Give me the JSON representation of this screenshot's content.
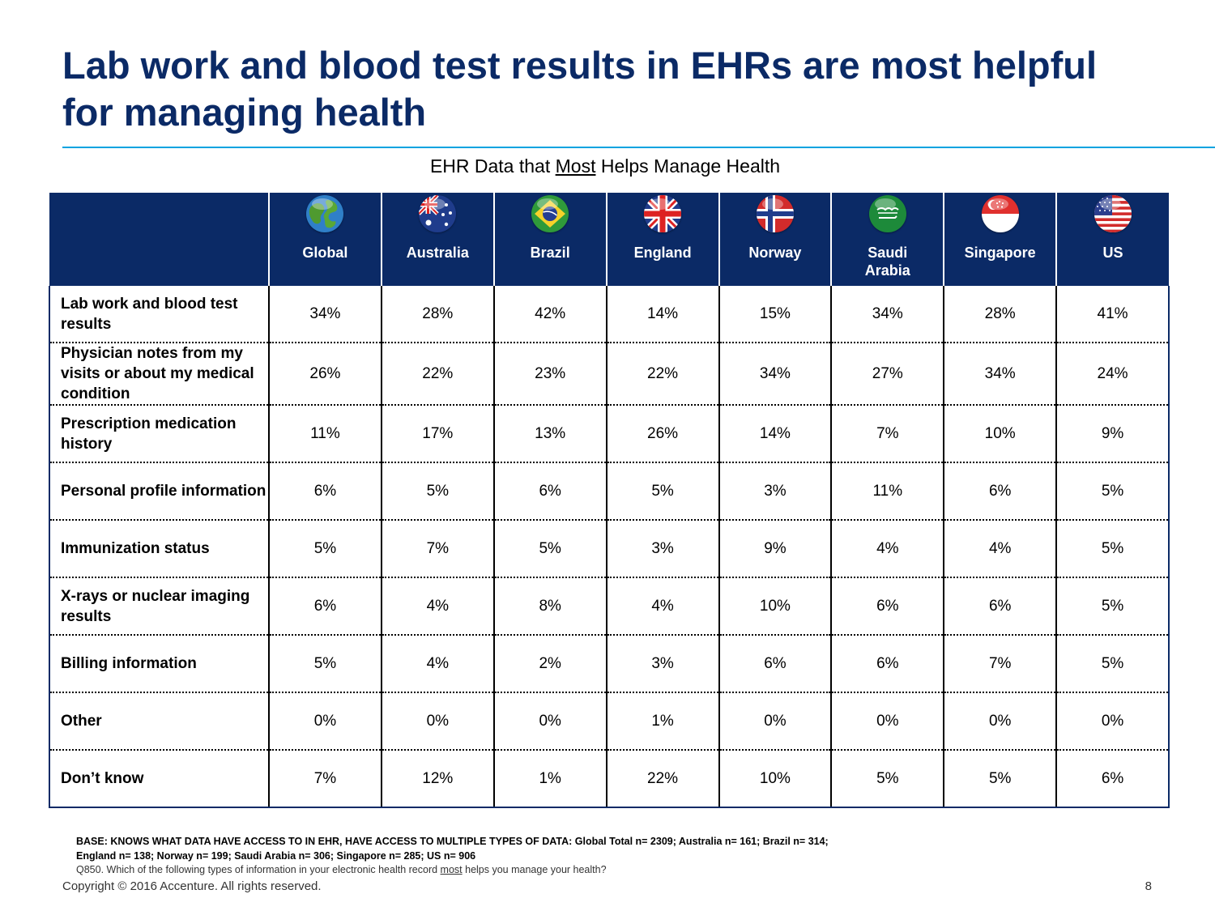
{
  "title": "Lab work and blood test results in EHRs are most helpful for managing health",
  "subtitle": {
    "before": "EHR Data that ",
    "emphasis": "Most",
    "after": " Helps Manage Health"
  },
  "chart_data": {
    "type": "table",
    "title": "EHR Data that Most Helps Manage Health",
    "columns": [
      "Global",
      "Australia",
      "Brazil",
      "England",
      "Norway",
      "Saudi\nArabia",
      "Singapore",
      "US"
    ],
    "flag_icons": [
      "globe-icon",
      "australia-flag-icon",
      "brazil-flag-icon",
      "england-flag-icon",
      "norway-flag-icon",
      "saudi-arabia-flag-icon",
      "singapore-flag-icon",
      "us-flag-icon"
    ],
    "rows": [
      {
        "label": "Lab work and blood test results",
        "values": [
          "34%",
          "28%",
          "42%",
          "14%",
          "15%",
          "34%",
          "28%",
          "41%"
        ]
      },
      {
        "label": "Physician notes from my visits or about my medical condition",
        "values": [
          "26%",
          "22%",
          "23%",
          "22%",
          "34%",
          "27%",
          "34%",
          "24%"
        ]
      },
      {
        "label": "Prescription medication history",
        "values": [
          "11%",
          "17%",
          "13%",
          "26%",
          "14%",
          "7%",
          "10%",
          "9%"
        ]
      },
      {
        "label": "Personal profile information",
        "values": [
          "6%",
          "5%",
          "6%",
          "5%",
          "3%",
          "11%",
          "6%",
          "5%"
        ]
      },
      {
        "label": "Immunization status",
        "values": [
          "5%",
          "7%",
          "5%",
          "3%",
          "9%",
          "4%",
          "4%",
          "5%"
        ]
      },
      {
        "label": "X-rays or nuclear imaging results",
        "values": [
          "6%",
          "4%",
          "8%",
          "4%",
          "10%",
          "6%",
          "6%",
          "5%"
        ]
      },
      {
        "label": "Billing information",
        "values": [
          "5%",
          "4%",
          "2%",
          "3%",
          "6%",
          "6%",
          "7%",
          "5%"
        ]
      },
      {
        "label": "Other",
        "values": [
          "0%",
          "0%",
          "0%",
          "1%",
          "0%",
          "0%",
          "0%",
          "0%"
        ]
      },
      {
        "label": "Don’t know",
        "values": [
          "7%",
          "12%",
          "1%",
          "22%",
          "10%",
          "5%",
          "5%",
          "6%"
        ]
      }
    ]
  },
  "footnote": {
    "base_line1": "BASE: KNOWS WHAT DATA HAVE ACCESS TO IN EHR, HAVE ACCESS TO MULTIPLE TYPES OF DATA: Global Total n= 2309; Australia n= 161; Brazil n= 314;",
    "base_line2": "England n= 138; Norway n= 199; Saudi Arabia  n= 306; Singapore n= 285; US n= 906",
    "question_before": "Q850.  Which of the following types of information in your electronic health record ",
    "question_emphasis": "most",
    "question_after": " helps you manage your health?"
  },
  "copyright": "Copyright © 2016 Accenture. All rights reserved.",
  "page_number": "8",
  "colors": {
    "title": "#0b2a66",
    "header_bg": "#0b2a66",
    "rule": "#00a3e0"
  }
}
